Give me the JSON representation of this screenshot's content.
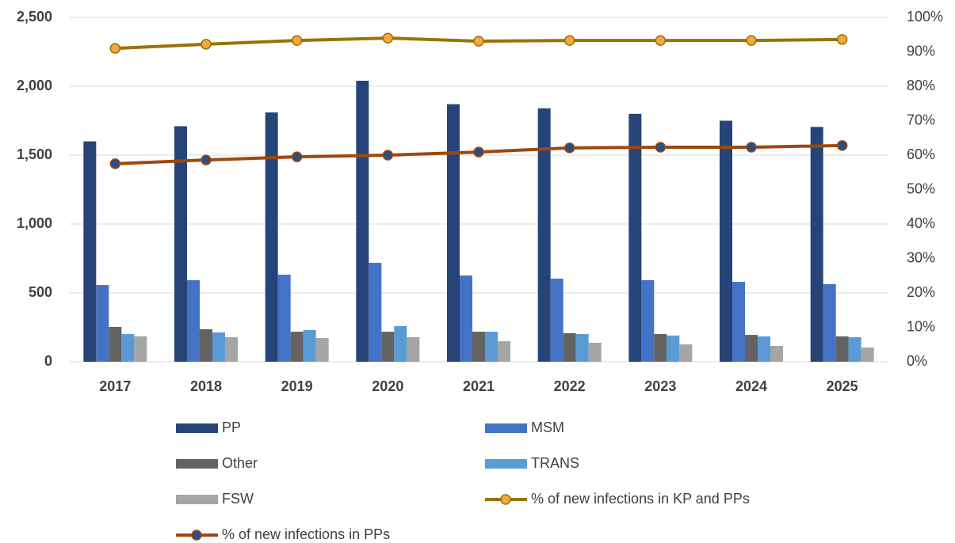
{
  "chart_data": {
    "type": "bar",
    "categories": [
      "2017",
      "2018",
      "2019",
      "2020",
      "2021",
      "2022",
      "2023",
      "2024",
      "2025"
    ],
    "series": [
      {
        "name": "PP",
        "color": "#264478",
        "values": [
          1600,
          1710,
          1810,
          2040,
          1870,
          1840,
          1800,
          1750,
          1705
        ]
      },
      {
        "name": "MSM",
        "color": "#4472c4",
        "values": [
          557,
          592,
          632,
          718,
          626,
          603,
          592,
          580,
          563
        ]
      },
      {
        "name": "Other",
        "color": "#636363",
        "values": [
          253,
          236,
          218,
          218,
          218,
          207,
          201,
          195,
          184
        ]
      },
      {
        "name": "TRANS",
        "color": "#5b9bd5",
        "values": [
          201,
          213,
          230,
          259,
          218,
          201,
          190,
          184,
          178
        ]
      },
      {
        "name": "FSW",
        "color": "#a5a5a5",
        "values": [
          184,
          178,
          172,
          178,
          149,
          138,
          126,
          115,
          103
        ]
      },
      {
        "name": "% of new infections in KP and PPs",
        "type": "line",
        "axis": "y2",
        "color": "#997300",
        "marker_color": "#f4a742",
        "values": [
          91.0,
          92.2,
          93.3,
          94.0,
          93.1,
          93.3,
          93.3,
          93.3,
          93.6
        ]
      },
      {
        "name": "% of new infections in PPs",
        "type": "line",
        "axis": "y2",
        "color": "#9e480e",
        "marker_color": "#2e4e7e",
        "values": [
          57.5,
          58.6,
          59.5,
          60.0,
          60.9,
          62.1,
          62.3,
          62.3,
          62.8
        ]
      }
    ],
    "ylim": [
      0,
      2500
    ],
    "yticks": [
      0,
      500,
      {
        "value": 1000,
        "label": "1,000"
      },
      {
        "value": 1500,
        "label": "1,500"
      },
      {
        "value": 2000,
        "label": "2,000"
      },
      {
        "value": 2500,
        "label": "2,500"
      }
    ],
    "y2lim": [
      0,
      100
    ],
    "y2ticks": [
      {
        "value": 0,
        "label": "0%"
      },
      {
        "value": 10,
        "label": "10%"
      },
      {
        "value": 20,
        "label": "20%"
      },
      {
        "value": 30,
        "label": "30%"
      },
      {
        "value": 40,
        "label": "40%"
      },
      {
        "value": 50,
        "label": "50%"
      },
      {
        "value": 60,
        "label": "60%"
      },
      {
        "value": 70,
        "label": "70%"
      },
      {
        "value": 80,
        "label": "80%"
      },
      {
        "value": 90,
        "label": "90%"
      },
      {
        "value": 100,
        "label": "100%"
      }
    ],
    "grid": true
  }
}
